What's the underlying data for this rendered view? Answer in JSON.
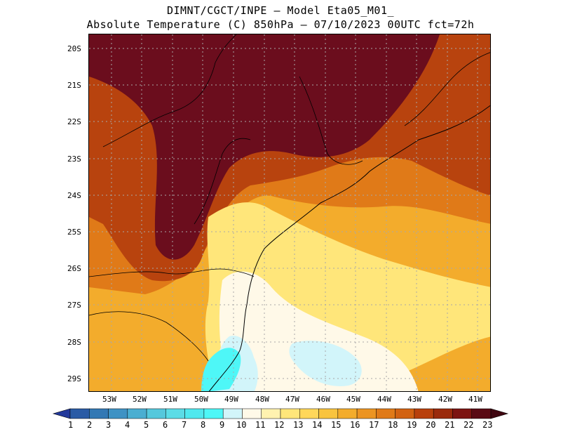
{
  "header": {
    "line1": "DIMNT/CGCT/INPE –  Model Eta05_M01_",
    "line2": "Absolute Temperature (C) 850hPa –  07/10/2023 00UTC fct=72h"
  },
  "axes": {
    "lat_labels": [
      "20S",
      "21S",
      "22S",
      "23S",
      "24S",
      "25S",
      "26S",
      "27S",
      "28S",
      "29S"
    ],
    "lon_labels": [
      "53W",
      "52W",
      "51W",
      "50W",
      "49W",
      "48W",
      "47W",
      "46W",
      "45W",
      "44W",
      "43W",
      "42W",
      "41W"
    ]
  },
  "colorbar": {
    "labels": [
      "1",
      "2",
      "3",
      "4",
      "5",
      "6",
      "7",
      "8",
      "9",
      "10",
      "11",
      "12",
      "13",
      "14",
      "15",
      "16",
      "17",
      "18",
      "19",
      "20",
      "21",
      "22",
      "23"
    ],
    "colors": [
      "#23399b",
      "#2a5ba5",
      "#3378b4",
      "#3f92c4",
      "#4baed1",
      "#55c8dc",
      "#5bdce6",
      "#50e8ee",
      "#4ef7f7",
      "#d2f5fa",
      "#fff9e8",
      "#fff2b0",
      "#ffe67a",
      "#ffd75a",
      "#f9c43f",
      "#f3ac2c",
      "#ec9422",
      "#e07a18",
      "#d26212",
      "#b8400c",
      "#9a2a0c",
      "#7c1412",
      "#5a0a14",
      "#3f0610"
    ]
  },
  "map": {
    "region": "Southern Brazil / South Atlantic",
    "colors": {
      "hot": "#6b0d1d",
      "warm": "#b8430e",
      "orange": "#e07a18",
      "amber": "#f3ac2c",
      "yellow": "#ffe67a",
      "pale": "#fff9e8",
      "cool": "#d2f5fa",
      "cyan": "#4ef7f7"
    }
  }
}
